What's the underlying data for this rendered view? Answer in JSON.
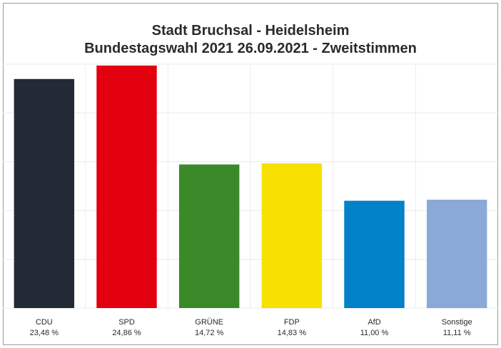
{
  "chart_data": {
    "type": "bar",
    "title": "Stadt Bruchsal - Heidelsheim",
    "subtitle": "Bundestagswahl 2021 26.09.2021  - Zweitstimmen",
    "categories": [
      "CDU",
      "SPD",
      "GRÜNE",
      "FDP",
      "AfD",
      "Sonstige"
    ],
    "values": [
      23.48,
      24.86,
      14.72,
      14.83,
      11.0,
      11.11
    ],
    "value_labels": [
      "23,48 %",
      "24,86 %",
      "14,72 %",
      "14,83 %",
      "11,00 %",
      "11,11 %"
    ],
    "colors": [
      "#222a35",
      "#e3000f",
      "#3a8a2a",
      "#f8e000",
      "#0081c8",
      "#8aa9d6"
    ],
    "xlabel": "",
    "ylabel": "",
    "ylim": [
      0,
      25
    ],
    "grid": true,
    "legend": "none"
  }
}
